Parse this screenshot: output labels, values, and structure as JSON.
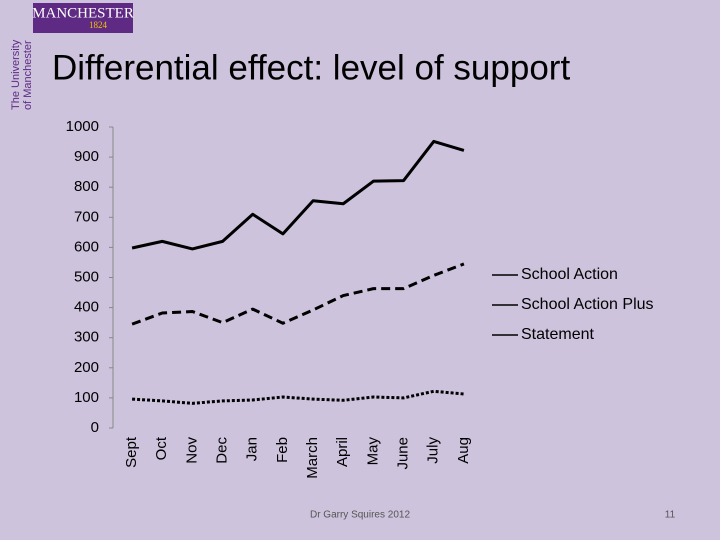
{
  "slide": {
    "logo_name": "MANCHESTER",
    "logo_year": "1824",
    "logo_side": [
      "The University",
      "of Manchester"
    ],
    "footer": "Dr Garry Squires 2012",
    "page_number": "11"
  },
  "chart_data": {
    "type": "line",
    "title": "Differential effect: level of support",
    "categories": [
      "Sept",
      "Oct",
      "Nov",
      "Dec",
      "Jan",
      "Feb",
      "March",
      "April",
      "May",
      "June",
      "July",
      "Aug"
    ],
    "series": [
      {
        "name": "School Action",
        "color": "#000000",
        "dash": "solid",
        "values": [
          598,
          620,
          595,
          620,
          710,
          645,
          755,
          745,
          820,
          822,
          952,
          922
        ]
      },
      {
        "name": "School Action Plus",
        "color": "#000000",
        "dash": "dashed",
        "values": [
          345,
          382,
          387,
          350,
          395,
          348,
          392,
          440,
          463,
          463,
          507,
          545
        ]
      },
      {
        "name": "Statement",
        "color": "#000000",
        "dash": "dotted",
        "values": [
          96,
          90,
          82,
          90,
          93,
          103,
          96,
          92,
          103,
          100,
          122,
          113
        ]
      }
    ],
    "ylim": [
      0,
      1000
    ],
    "yticks": [
      0,
      100,
      200,
      300,
      400,
      500,
      600,
      700,
      800,
      900,
      1000
    ],
    "grid": false,
    "legend": "right"
  }
}
